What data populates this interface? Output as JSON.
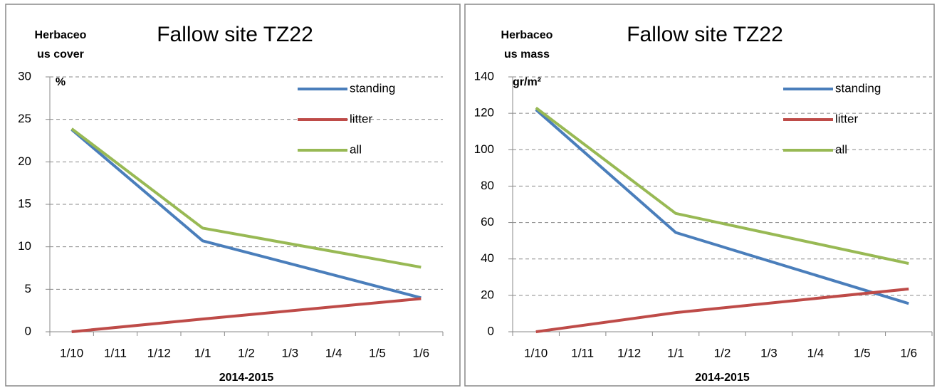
{
  "chart_data": [
    {
      "type": "line",
      "title": "Fallow site TZ22",
      "ylabel": [
        "Herbaceo",
        "us cover",
        "%"
      ],
      "xlabel": "2014-2015",
      "categories": [
        "1/10",
        "1/11",
        "1/12",
        "1/1",
        "1/2",
        "1/3",
        "1/4",
        "1/5",
        "1/6"
      ],
      "series": [
        {
          "name": "standing",
          "color": "#4a7ebb",
          "x": [
            "1/10",
            "1/1",
            "1/6"
          ],
          "values": [
            23.8,
            10.7,
            4.0
          ]
        },
        {
          "name": "litter",
          "color": "#be4b48",
          "x": [
            "1/10",
            "1/1",
            "1/6"
          ],
          "values": [
            0,
            1.5,
            3.9
          ]
        },
        {
          "name": "all",
          "color": "#98b954",
          "x": [
            "1/10",
            "1/1",
            "1/6"
          ],
          "values": [
            23.9,
            12.2,
            7.6
          ]
        }
      ],
      "ylim": [
        0,
        30
      ],
      "yticks": [
        0,
        5,
        10,
        15,
        20,
        25,
        30
      ],
      "grid": true,
      "legend": "upper right"
    },
    {
      "type": "line",
      "title": "Fallow site TZ22",
      "ylabel": [
        "Herbaceo",
        "us  mass",
        "gr/m²"
      ],
      "xlabel": "2014-2015",
      "categories": [
        "1/10",
        "1/11",
        "1/12",
        "1/1",
        "1/2",
        "1/3",
        "1/4",
        "1/5",
        "1/6"
      ],
      "series": [
        {
          "name": "standing",
          "color": "#4a7ebb",
          "x": [
            "1/10",
            "1/1",
            "1/6"
          ],
          "values": [
            122,
            54.5,
            15.5
          ]
        },
        {
          "name": "litter",
          "color": "#be4b48",
          "x": [
            "1/10",
            "1/1",
            "1/6"
          ],
          "values": [
            0,
            10.5,
            23.5
          ]
        },
        {
          "name": "all",
          "color": "#98b954",
          "x": [
            "1/10",
            "1/1",
            "1/6"
          ],
          "values": [
            123,
            65,
            37.5
          ]
        }
      ],
      "ylim": [
        0,
        140
      ],
      "yticks": [
        0,
        20,
        40,
        60,
        80,
        100,
        120,
        140
      ],
      "grid": true,
      "legend": "upper right"
    }
  ]
}
